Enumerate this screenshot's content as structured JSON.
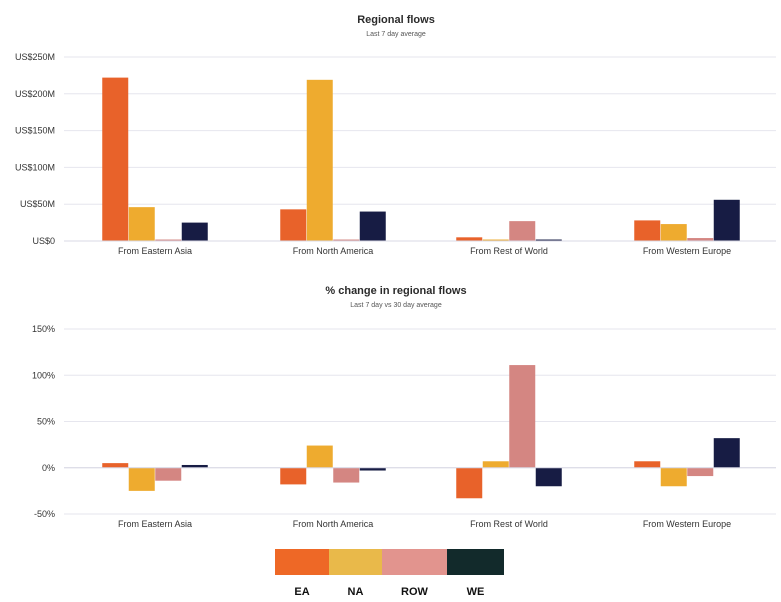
{
  "chart_data": [
    {
      "type": "bar",
      "title": "Regional flows",
      "subtitle": "Last 7 day average",
      "categories": [
        "From Eastern Asia",
        "From North America",
        "From Rest of World",
        "From Western Europe"
      ],
      "series": [
        {
          "name": "EA",
          "values": [
            222,
            43,
            5,
            28
          ]
        },
        {
          "name": "NA",
          "values": [
            46,
            219,
            2,
            23
          ]
        },
        {
          "name": "ROW",
          "values": [
            2,
            2,
            27,
            4
          ]
        },
        {
          "name": "WE",
          "values": [
            25,
            40,
            2,
            56
          ]
        }
      ],
      "ylim": [
        0,
        250
      ],
      "yticks": [
        0,
        50,
        100,
        150,
        200,
        250
      ],
      "ytick_labels": [
        "US$0",
        "US$50M",
        "US$100M",
        "US$150M",
        "US$200M",
        "US$250M"
      ],
      "grid": true
    },
    {
      "type": "bar",
      "title": "% change in regional flows",
      "subtitle": "Last 7 day vs 30 day average",
      "categories": [
        "From Eastern Asia",
        "From North America",
        "From Rest of World",
        "From Western Europe"
      ],
      "series": [
        {
          "name": "EA",
          "values": [
            5,
            -18,
            -33,
            7
          ]
        },
        {
          "name": "NA",
          "values": [
            -25,
            24,
            7,
            -20
          ]
        },
        {
          "name": "ROW",
          "values": [
            -14,
            -16,
            111,
            -9
          ]
        },
        {
          "name": "WE",
          "values": [
            3,
            -3,
            -20,
            32
          ]
        }
      ],
      "ylim": [
        -50,
        150
      ],
      "yticks": [
        -50,
        0,
        50,
        100,
        150
      ],
      "ytick_labels": [
        "-50%",
        "0%",
        "50%",
        "100%",
        "150%"
      ],
      "grid": true
    }
  ],
  "legend": {
    "placement": "bottom",
    "items": [
      {
        "name": "EA",
        "color": "#ee6826"
      },
      {
        "name": "NA",
        "color": "#e9b94a"
      },
      {
        "name": "ROW",
        "color": "#e2948e"
      },
      {
        "name": "WE",
        "color": "#122a2b"
      }
    ]
  },
  "bar_colors": {
    "EA": "#e8622a",
    "NA": "#eeab2f",
    "ROW": "#d48682",
    "WE": "#171c44"
  }
}
